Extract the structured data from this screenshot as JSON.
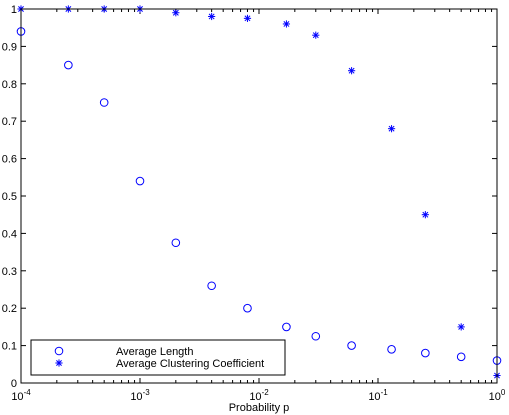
{
  "chart_data": {
    "type": "scatter",
    "title": "",
    "xlabel": "Probability p",
    "ylabel": "",
    "x_scale": "log",
    "xlim": [
      0.0001,
      1
    ],
    "ylim": [
      0,
      1
    ],
    "x_ticks": [
      {
        "value": 0.0001,
        "base": "10",
        "exp": "-4"
      },
      {
        "value": 0.001,
        "base": "10",
        "exp": "-3"
      },
      {
        "value": 0.01,
        "base": "10",
        "exp": "-2"
      },
      {
        "value": 0.1,
        "base": "10",
        "exp": "-1"
      },
      {
        "value": 1,
        "base": "10",
        "exp": "0"
      }
    ],
    "y_ticks": [
      {
        "value": 0,
        "label": "0"
      },
      {
        "value": 0.1,
        "label": "0.1"
      },
      {
        "value": 0.2,
        "label": "0.2"
      },
      {
        "value": 0.3,
        "label": "0.3"
      },
      {
        "value": 0.4,
        "label": "0.4"
      },
      {
        "value": 0.5,
        "label": "0.5"
      },
      {
        "value": 0.6,
        "label": "0.6"
      },
      {
        "value": 0.7,
        "label": "0.7"
      },
      {
        "value": 0.8,
        "label": "0.8"
      },
      {
        "value": 0.9,
        "label": "0.9"
      },
      {
        "value": 1,
        "label": "1"
      }
    ],
    "grid": false,
    "legend_position": "bottom-left",
    "series": [
      {
        "name": "Average Length",
        "marker": "circle",
        "color": "#0000ff",
        "x": [
          0.0001,
          0.00025,
          0.0005,
          0.001,
          0.002,
          0.004,
          0.008,
          0.017,
          0.03,
          0.06,
          0.13,
          0.25,
          0.5,
          1
        ],
        "y": [
          0.94,
          0.85,
          0.75,
          0.54,
          0.375,
          0.26,
          0.2,
          0.15,
          0.125,
          0.1,
          0.09,
          0.08,
          0.07,
          0.06
        ]
      },
      {
        "name": "Average Clustering Coefficient",
        "marker": "asterisk",
        "color": "#0000ff",
        "x": [
          0.0001,
          0.00025,
          0.0005,
          0.001,
          0.002,
          0.004,
          0.008,
          0.017,
          0.03,
          0.06,
          0.13,
          0.25,
          0.5,
          1
        ],
        "y": [
          1.0,
          1.0,
          1.0,
          1.0,
          0.99,
          0.98,
          0.975,
          0.96,
          0.93,
          0.835,
          0.68,
          0.45,
          0.15,
          0.02
        ]
      }
    ]
  }
}
